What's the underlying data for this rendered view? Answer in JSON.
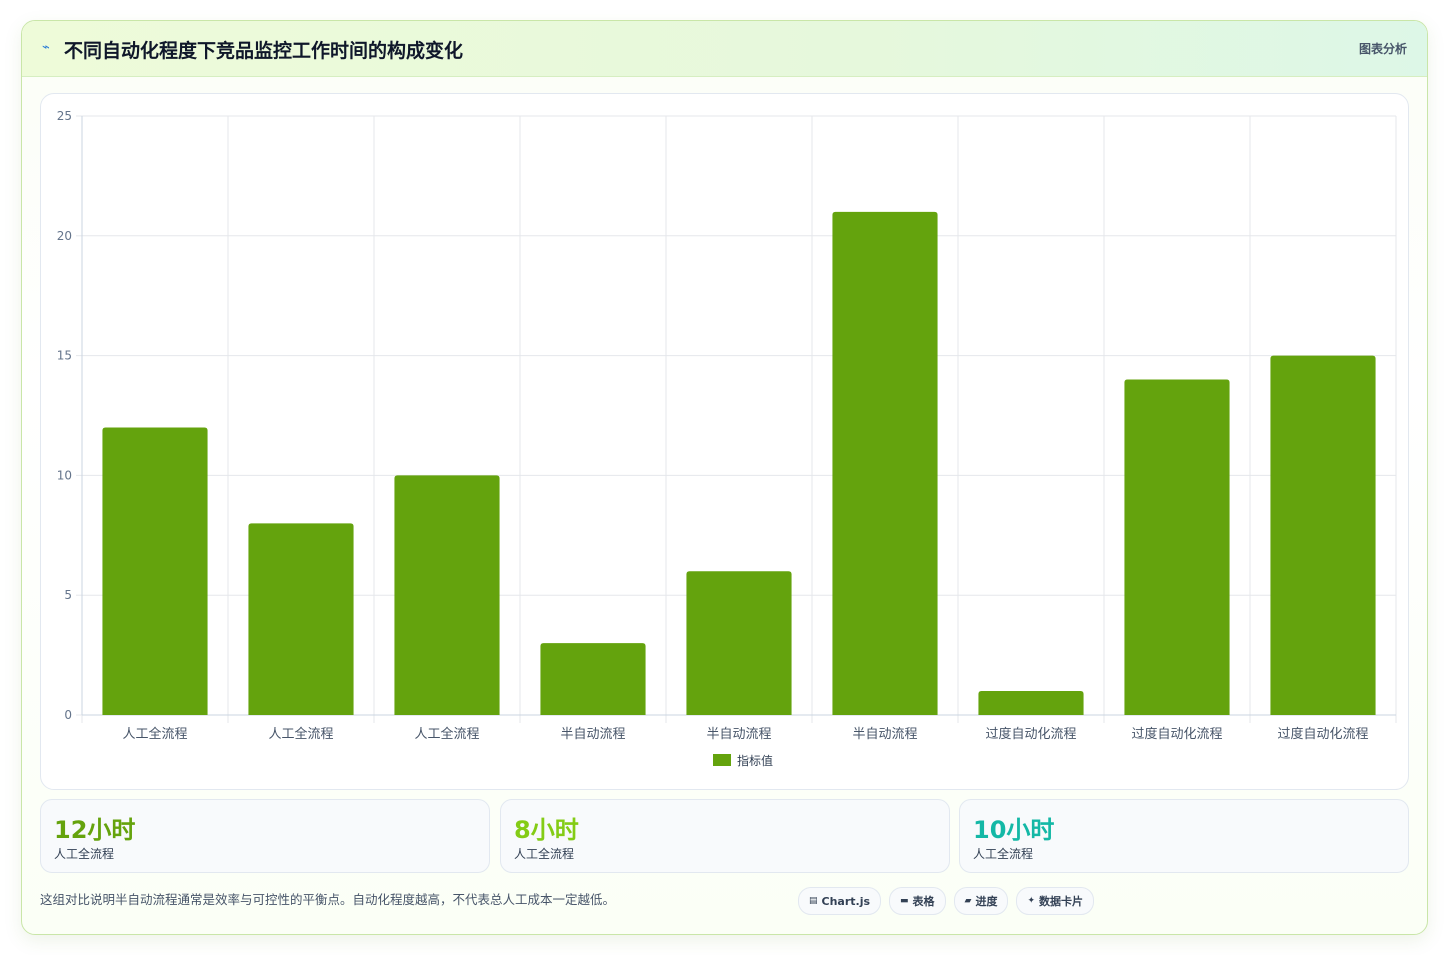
{
  "header": {
    "icon": "chart-line-icon",
    "title": "不同自动化程度下竞品监控工作时间的构成变化",
    "right_label": "图表分析"
  },
  "chart_data": {
    "type": "bar",
    "categories": [
      "人工全流程",
      "人工全流程",
      "人工全流程",
      "半自动流程",
      "半自动流程",
      "半自动流程",
      "过度自动化流程",
      "过度自动化流程",
      "过度自动化流程"
    ],
    "series": [
      {
        "name": "指标值",
        "values": [
          12,
          8,
          10,
          3,
          6,
          21,
          1,
          14,
          15
        ],
        "color": "#64a30d"
      }
    ],
    "ylim": [
      0,
      25
    ],
    "yticks": [
      0,
      5,
      10,
      15,
      20,
      25
    ],
    "grid": true,
    "legend_position": "bottom"
  },
  "stats": [
    {
      "value": "12小时",
      "label": "人工全流程",
      "color": "#65a30d"
    },
    {
      "value": "8小时",
      "label": "人工全流程",
      "color": "#84cc16"
    },
    {
      "value": "10小时",
      "label": "人工全流程",
      "color": "#14b8a6"
    }
  ],
  "footer": {
    "note": "这组对比说明半自动流程通常是效率与可控性的平衡点。自动化程度越高，不代表总人工成本一定越低。",
    "tags": [
      {
        "icon": "chart-icon",
        "label": "Chart.js"
      },
      {
        "icon": "table-icon",
        "label": "表格"
      },
      {
        "icon": "progress-icon",
        "label": "进度"
      },
      {
        "icon": "sparkle-icon",
        "label": "数据卡片"
      }
    ]
  }
}
